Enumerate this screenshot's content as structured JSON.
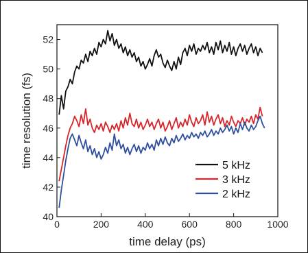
{
  "chart_data": {
    "type": "line",
    "xlabel": "time delay (ps)",
    "ylabel": "time resolution (fs)",
    "xlim": [
      0,
      1000
    ],
    "ylim": [
      40,
      53
    ],
    "xticks": [
      0,
      200,
      400,
      600,
      800,
      1000
    ],
    "yticks": [
      40,
      42,
      44,
      46,
      48,
      50,
      52
    ],
    "grid": false,
    "legend_position": "bottom-right",
    "series": [
      {
        "name": "5 kHz",
        "color": "#111111",
        "x": [
          10,
          20,
          30,
          40,
          50,
          60,
          70,
          80,
          90,
          100,
          110,
          120,
          130,
          140,
          150,
          160,
          170,
          180,
          190,
          200,
          210,
          220,
          230,
          240,
          250,
          260,
          270,
          280,
          290,
          300,
          310,
          320,
          330,
          340,
          350,
          360,
          370,
          380,
          390,
          400,
          410,
          420,
          430,
          440,
          450,
          460,
          470,
          480,
          490,
          500,
          510,
          520,
          530,
          540,
          550,
          560,
          570,
          580,
          590,
          600,
          610,
          620,
          630,
          640,
          650,
          660,
          670,
          680,
          690,
          700,
          710,
          720,
          730,
          740,
          750,
          760,
          770,
          780,
          790,
          800,
          810,
          820,
          830,
          840,
          850,
          860,
          870,
          880,
          890,
          900,
          910,
          920,
          930
        ],
        "y": [
          46.9,
          48.2,
          47.3,
          48.5,
          48.8,
          49.3,
          49.0,
          49.8,
          50.2,
          50.0,
          50.6,
          50.4,
          51.0,
          50.5,
          51.2,
          50.9,
          51.4,
          51.0,
          51.8,
          51.5,
          52.0,
          51.7,
          52.6,
          51.9,
          52.4,
          51.6,
          52.0,
          51.4,
          51.7,
          51.1,
          51.5,
          50.9,
          51.3,
          50.8,
          51.1,
          50.5,
          50.8,
          50.2,
          50.5,
          50.0,
          50.3,
          50.7,
          50.2,
          50.9,
          51.3,
          50.8,
          51.0,
          50.4,
          50.1,
          50.6,
          50.2,
          49.9,
          50.5,
          50.0,
          50.8,
          50.3,
          51.1,
          51.4,
          50.9,
          51.6,
          51.2,
          51.7,
          51.0,
          51.4,
          51.2,
          51.6,
          51.3,
          51.8,
          51.1,
          51.5,
          51.0,
          51.8,
          51.3,
          51.9,
          51.1,
          51.6,
          51.2,
          51.8,
          51.0,
          51.5,
          50.9,
          51.4,
          51.7,
          51.2,
          51.6,
          51.0,
          51.4,
          51.7,
          51.1,
          51.5,
          50.9,
          51.4,
          51.1
        ]
      },
      {
        "name": "3 kHz",
        "color": "#d7262b",
        "x": [
          10,
          20,
          30,
          40,
          50,
          60,
          70,
          80,
          90,
          100,
          110,
          120,
          130,
          140,
          150,
          160,
          170,
          180,
          190,
          200,
          210,
          220,
          230,
          240,
          250,
          260,
          270,
          280,
          290,
          300,
          310,
          320,
          330,
          340,
          350,
          360,
          370,
          380,
          390,
          400,
          410,
          420,
          430,
          440,
          450,
          460,
          470,
          480,
          490,
          500,
          510,
          520,
          530,
          540,
          550,
          560,
          570,
          580,
          590,
          600,
          610,
          620,
          630,
          640,
          650,
          660,
          670,
          680,
          690,
          700,
          710,
          720,
          730,
          740,
          750,
          760,
          770,
          780,
          790,
          800,
          810,
          820,
          830,
          840,
          850,
          860,
          870,
          880,
          890,
          900,
          910,
          920,
          930
        ],
        "y": [
          42.4,
          43.2,
          44.0,
          44.8,
          45.5,
          46.0,
          46.3,
          46.8,
          46.5,
          46.1,
          46.9,
          46.3,
          47.3,
          46.2,
          46.6,
          46.0,
          45.7,
          46.2,
          45.9,
          46.3,
          45.8,
          46.4,
          46.1,
          45.7,
          46.2,
          45.9,
          46.3,
          45.8,
          46.5,
          46.0,
          46.7,
          46.2,
          47.0,
          46.3,
          46.1,
          46.6,
          46.0,
          46.4,
          45.9,
          46.2,
          46.6,
          46.1,
          46.4,
          45.9,
          46.3,
          46.6,
          46.0,
          46.4,
          45.8,
          46.1,
          46.5,
          45.9,
          46.3,
          46.7,
          46.0,
          46.4,
          46.1,
          46.6,
          46.2,
          46.9,
          46.4,
          46.1,
          46.7,
          46.3,
          46.5,
          46.9,
          46.2,
          47.1,
          46.4,
          46.8,
          46.2,
          46.6,
          46.9,
          46.3,
          46.7,
          46.1,
          46.5,
          46.2,
          46.8,
          46.4,
          46.1,
          46.5,
          46.3,
          46.7,
          46.2,
          46.6,
          46.4,
          46.8,
          46.3,
          46.9,
          46.6,
          47.4,
          46.8
        ]
      },
      {
        "name": "2 kHz",
        "color": "#2f4f9e",
        "x": [
          10,
          20,
          30,
          40,
          50,
          60,
          70,
          80,
          90,
          100,
          110,
          120,
          130,
          140,
          150,
          160,
          170,
          180,
          190,
          200,
          210,
          220,
          230,
          240,
          250,
          260,
          270,
          280,
          290,
          300,
          310,
          320,
          330,
          340,
          350,
          360,
          370,
          380,
          390,
          400,
          410,
          420,
          430,
          440,
          450,
          460,
          470,
          480,
          490,
          500,
          510,
          520,
          530,
          540,
          550,
          560,
          570,
          580,
          590,
          600,
          610,
          620,
          630,
          640,
          650,
          660,
          670,
          680,
          690,
          700,
          710,
          720,
          730,
          740,
          750,
          760,
          770,
          780,
          790,
          800,
          810,
          820,
          830,
          840,
          850,
          860,
          870,
          880,
          890,
          900,
          910,
          920,
          930,
          940
        ],
        "y": [
          40.6,
          41.8,
          42.8,
          43.8,
          44.6,
          45.3,
          45.6,
          45.2,
          44.8,
          45.5,
          45.0,
          44.6,
          45.2,
          44.4,
          44.8,
          44.2,
          44.6,
          44.0,
          44.4,
          43.9,
          44.2,
          44.7,
          44.3,
          45.0,
          44.5,
          45.6,
          44.8,
          45.2,
          44.6,
          44.9,
          44.3,
          44.7,
          44.2,
          44.6,
          44.9,
          44.4,
          44.8,
          44.3,
          44.7,
          44.5,
          45.0,
          44.6,
          44.9,
          44.5,
          45.2,
          44.8,
          45.3,
          44.9,
          45.4,
          45.0,
          44.8,
          45.3,
          45.0,
          45.5,
          45.1,
          45.3,
          45.6,
          45.2,
          45.5,
          45.3,
          45.7,
          45.4,
          45.6,
          45.3,
          45.7,
          45.5,
          45.8,
          45.4,
          45.6,
          45.9,
          45.5,
          45.8,
          45.6,
          46.0,
          45.7,
          45.9,
          46.2,
          45.8,
          46.1,
          45.6,
          46.0,
          45.7,
          46.3,
          45.9,
          46.4,
          46.0,
          45.8,
          46.2,
          45.9,
          46.1,
          46.5,
          46.8,
          46.3,
          46.0
        ]
      }
    ]
  }
}
